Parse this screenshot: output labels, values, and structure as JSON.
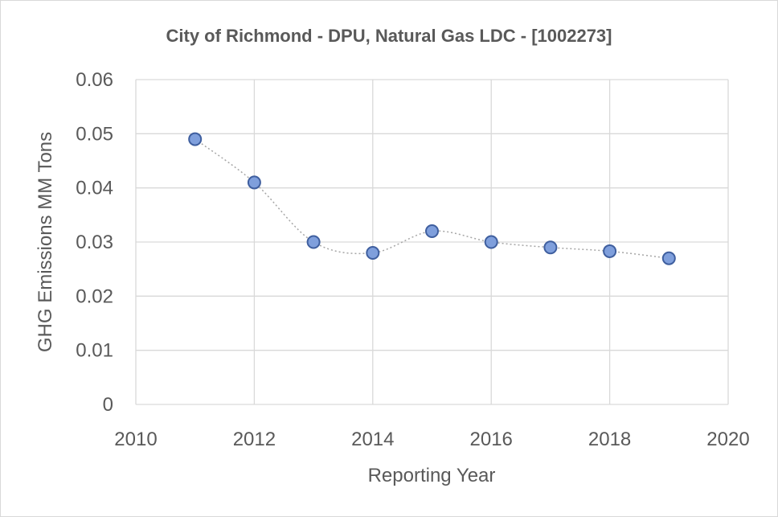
{
  "chart_data": {
    "type": "scatter",
    "title": "City of Richmond - DPU, Natural Gas LDC - [1002273]",
    "xlabel": "Reporting Year",
    "ylabel": "GHG Emissions MM Tons",
    "xlim": [
      2010,
      2020
    ],
    "ylim": [
      0,
      0.06
    ],
    "x_ticks": [
      "2010",
      "2012",
      "2014",
      "2016",
      "2018",
      "2020"
    ],
    "y_ticks": [
      "0",
      "0.01",
      "0.02",
      "0.03",
      "0.04",
      "0.05",
      "0.06"
    ],
    "grid": true,
    "legend": "none",
    "series": [
      {
        "x": [
          2011,
          2012,
          2013,
          2014,
          2015,
          2016,
          2017,
          2018,
          2019
        ],
        "y": [
          0.049,
          0.041,
          0.03,
          0.028,
          0.032,
          0.03,
          0.029,
          0.0283,
          0.027
        ]
      }
    ],
    "colors": {
      "marker_fill": "#7f9fdc",
      "marker_stroke": "#3f5f9f",
      "line": "#a6a6a6",
      "grid": "#d9d9d9",
      "text": "#595959"
    }
  }
}
